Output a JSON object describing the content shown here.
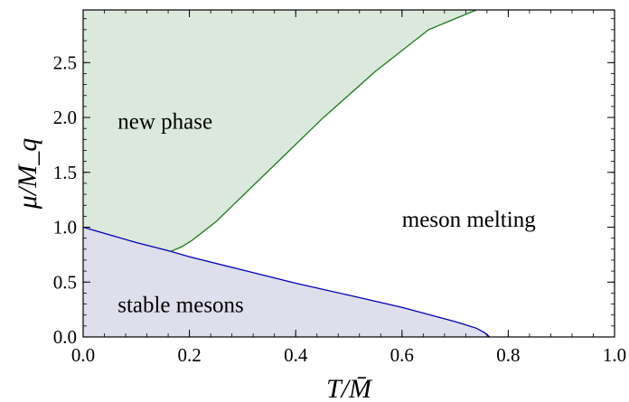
{
  "chart_data": {
    "type": "area",
    "xlabel": "T/M̄",
    "ylabel": "μ/M_q",
    "xlim": [
      0,
      1.0
    ],
    "ylim": [
      0,
      2.98
    ],
    "x_ticks": [
      "0.0",
      "0.2",
      "0.4",
      "0.6",
      "0.8",
      "1.0"
    ],
    "y_ticks": [
      "0.0",
      "0.5",
      "1.0",
      "1.5",
      "2.0",
      "2.5"
    ],
    "grid": false,
    "series": [
      {
        "name": "",
        "color": "#1a7a1a",
        "fill": "#dbe8dc",
        "x": [
          0.165,
          0.185,
          0.205,
          0.25,
          0.35,
          0.45,
          0.55,
          0.65,
          0.74
        ],
        "y": [
          0.78,
          0.82,
          0.88,
          1.05,
          1.52,
          1.99,
          2.42,
          2.8,
          2.98
        ]
      },
      {
        "name": "",
        "color": "#0000b4",
        "fill": "#dedeed",
        "x": [
          0.0,
          0.1,
          0.165,
          0.2,
          0.3,
          0.4,
          0.5,
          0.6,
          0.7,
          0.74,
          0.755,
          0.765
        ],
        "y": [
          1.0,
          0.86,
          0.78,
          0.73,
          0.61,
          0.49,
          0.38,
          0.27,
          0.14,
          0.08,
          0.04,
          0.0
        ]
      }
    ],
    "annotations": [
      {
        "text": "new phase",
        "x": 0.065,
        "y": 1.97
      },
      {
        "text": "meson melting",
        "x": 0.6,
        "y": 1.08
      },
      {
        "text": "stable mesons",
        "x": 0.065,
        "y": 0.3
      }
    ]
  }
}
